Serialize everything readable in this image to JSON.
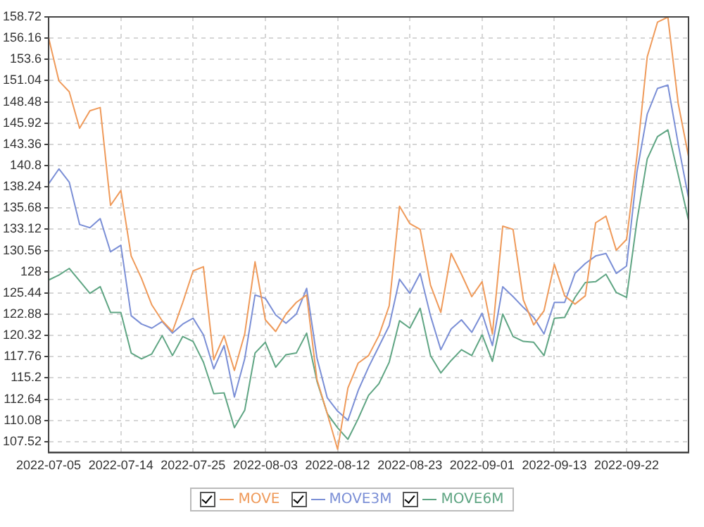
{
  "chart_data": {
    "type": "line",
    "categories": [
      "2022-07-05",
      null,
      null,
      null,
      null,
      null,
      null,
      "2022-07-14",
      null,
      null,
      null,
      null,
      null,
      null,
      "2022-07-25",
      null,
      null,
      null,
      null,
      null,
      null,
      "2022-08-03",
      null,
      null,
      null,
      null,
      null,
      null,
      "2022-08-12",
      null,
      null,
      null,
      null,
      null,
      null,
      "2022-08-23",
      null,
      null,
      null,
      null,
      null,
      null,
      "2022-09-01",
      null,
      null,
      null,
      null,
      null,
      null,
      "2022-09-13",
      null,
      null,
      null,
      null,
      null,
      null,
      "2022-09-22",
      null,
      null,
      null,
      null,
      null,
      null
    ],
    "series": [
      {
        "name": "MOVE",
        "color": "#ef9a5a",
        "values": [
          156.2,
          151,
          149.7,
          145.3,
          147.4,
          147.8,
          136,
          137.8,
          129.9,
          127.2,
          124,
          122.1,
          120.8,
          124.3,
          128.1,
          128.6,
          117.4,
          120.3,
          116.1,
          120.5,
          129.2,
          122.2,
          120.8,
          122.9,
          124.3,
          125.2,
          115,
          110.9,
          106.6,
          114,
          117,
          117.9,
          120.3,
          123.9,
          135.9,
          133.8,
          133.1,
          126.4,
          123.1,
          130.2,
          127.7,
          125,
          126.8,
          120.5,
          133.5,
          133.1,
          124.6,
          121.6,
          123.3,
          128.9,
          125.1,
          124.1,
          125.1,
          133.9,
          134.7,
          130.6,
          131.9,
          141.9,
          153.9,
          158.1,
          158.7,
          148.3,
          141.9
        ]
      },
      {
        "name": "MOVE3M",
        "color": "#7b8fd6",
        "values": [
          138.6,
          140.4,
          138.8,
          133.7,
          133.3,
          134.4,
          130.4,
          131.2,
          122.7,
          121.7,
          121.2,
          122,
          120.6,
          121.7,
          122.4,
          120.4,
          116.3,
          119.1,
          112.9,
          117.5,
          125.2,
          124.8,
          122.8,
          121.8,
          122.9,
          126,
          117.6,
          112.8,
          111.2,
          110.1,
          113.7,
          116.5,
          119,
          121.5,
          127.1,
          125.4,
          127.8,
          122.7,
          118.6,
          121.1,
          122.2,
          120.7,
          123,
          119.1,
          126.2,
          125,
          123.7,
          122.5,
          120.5,
          124.3,
          124.3,
          127.8,
          129,
          129.9,
          130.2,
          127.8,
          128.7,
          140,
          147,
          150.1,
          150.5,
          143.4,
          136.9
        ]
      },
      {
        "name": "MOVE6M",
        "color": "#5fa583",
        "values": [
          127,
          127.6,
          128.4,
          126.9,
          125.4,
          126.2,
          123.1,
          123.1,
          118.2,
          117.5,
          118.1,
          120.3,
          117.9,
          120.2,
          119.6,
          117.1,
          113.3,
          113.4,
          109.2,
          111.3,
          118.2,
          119.5,
          116.5,
          118,
          118.2,
          120.6,
          114.8,
          110.9,
          109.2,
          107.8,
          110.3,
          113.1,
          114.5,
          117.1,
          122.1,
          121.2,
          123.6,
          117.9,
          115.8,
          117.3,
          118.6,
          117.9,
          120.4,
          117.2,
          122.9,
          120.2,
          119.6,
          119.5,
          117.9,
          122.4,
          122.5,
          124.9,
          126.7,
          126.8,
          127.7,
          125.5,
          124.9,
          134.1,
          141.6,
          144.3,
          145.1,
          139.7,
          134.2
        ]
      }
    ],
    "ylim": [
      106.2,
      158.72
    ],
    "yticks": [
      107.52,
      110.08,
      112.64,
      115.2,
      117.76,
      120.32,
      122.88,
      125.44,
      128,
      130.56,
      133.12,
      135.68,
      138.24,
      140.8,
      143.36,
      145.92,
      148.48,
      151.04,
      153.6,
      156.16,
      158.72
    ],
    "grid": true,
    "legend": "bottom",
    "marker": "none",
    "line_style": "solid"
  }
}
